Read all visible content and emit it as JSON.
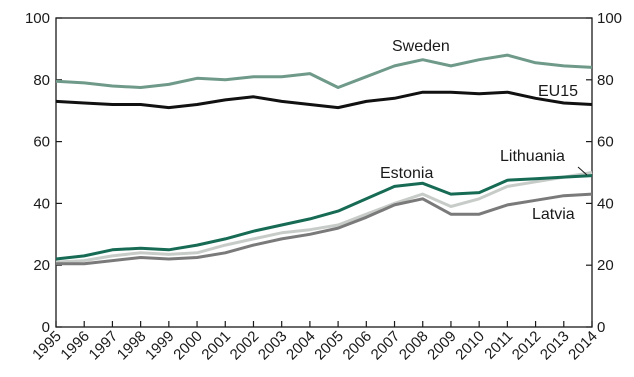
{
  "chart_data": {
    "type": "line",
    "x": [
      1995,
      1996,
      1997,
      1998,
      1999,
      2000,
      2001,
      2002,
      2003,
      2004,
      2005,
      2006,
      2007,
      2008,
      2009,
      2010,
      2011,
      2012,
      2013,
      2014
    ],
    "x_tick_labels": [
      "1995",
      "1996",
      "1997",
      "1998",
      "1999",
      "2000",
      "2001",
      "2002",
      "2003",
      "2004",
      "2005",
      "2006",
      "2007",
      "2008",
      "2009",
      "2010",
      "2011",
      "2012",
      "2013",
      "2014"
    ],
    "ylim": [
      0,
      100
    ],
    "y_ticks": [
      0,
      20,
      40,
      60,
      80,
      100
    ],
    "y_tick_labels": [
      "0",
      "20",
      "40",
      "60",
      "80",
      "100"
    ],
    "right_axis_mirrored": true,
    "grid": false,
    "legend": "none (direct labels)",
    "series": [
      {
        "name": "Sweden",
        "color": "#6f9a8a",
        "values": [
          79.5,
          79,
          78,
          77.5,
          78.5,
          80.5,
          80,
          81,
          81,
          82,
          77.5,
          81,
          84.5,
          86.5,
          84.5,
          86.5,
          88,
          85.5,
          84.5,
          84
        ]
      },
      {
        "name": "EU15",
        "color": "#111111",
        "values": [
          73,
          72.5,
          72,
          72,
          71,
          72,
          73.5,
          74.5,
          73,
          72,
          71,
          73,
          74,
          76,
          76,
          75.5,
          76,
          74,
          72.5,
          72
        ]
      },
      {
        "name": "Estonia",
        "color": "#176b54",
        "values": [
          22,
          23,
          25,
          25.5,
          25,
          26.5,
          28.5,
          31,
          33,
          35,
          37.5,
          41.5,
          45.5,
          46.5,
          43,
          43.5,
          47.5,
          48,
          48.5,
          49
        ]
      },
      {
        "name": "Lithuania",
        "color": "#c8ccc9",
        "values": [
          21,
          21.5,
          23,
          24,
          23.5,
          24,
          26.5,
          28.5,
          30.5,
          31.5,
          33,
          36.5,
          40,
          43,
          39,
          41.5,
          45.5,
          47,
          48.5,
          50
        ]
      },
      {
        "name": "Latvia",
        "color": "#7a7a7a",
        "values": [
          20.5,
          20.5,
          21.5,
          22.5,
          22,
          22.5,
          24,
          26.5,
          28.5,
          30,
          32,
          35.5,
          39.5,
          41.5,
          36.5,
          36.5,
          39.5,
          41,
          42.5,
          43
        ]
      }
    ],
    "direct_labels": [
      {
        "series": "Sweden",
        "text": "Sweden"
      },
      {
        "series": "EU15",
        "text": "EU15"
      },
      {
        "series": "Estonia",
        "text": "Estonia"
      },
      {
        "series": "Lithuania",
        "text": "Lithuania"
      },
      {
        "series": "Latvia",
        "text": "Latvia"
      }
    ]
  }
}
